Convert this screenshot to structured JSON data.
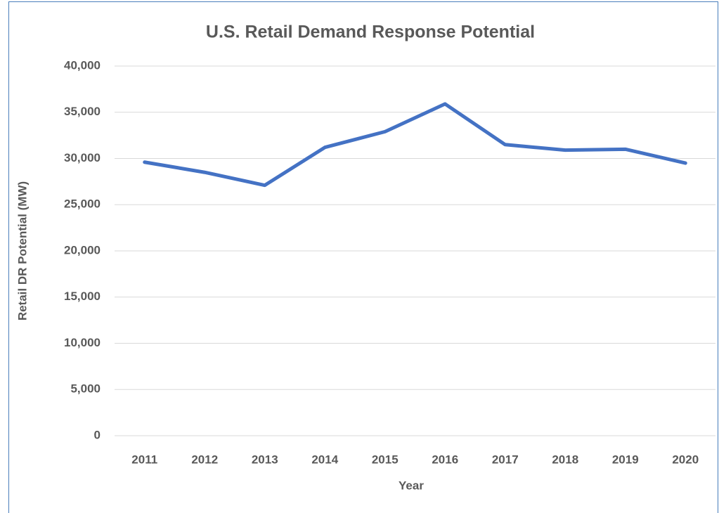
{
  "chart_data": {
    "type": "line",
    "title": "U.S. Retail Demand Response Potential",
    "x_label": "Year",
    "y_label": "Retail DR Potential (MW)",
    "categories": [
      "2011",
      "2012",
      "2013",
      "2014",
      "2015",
      "2016",
      "2017",
      "2018",
      "2019",
      "2020"
    ],
    "values": [
      29600,
      28500,
      27100,
      31200,
      32900,
      35900,
      31500,
      30900,
      31000,
      29500
    ],
    "color": "#4472c4",
    "ylim": [
      0,
      40000
    ],
    "yticks": [
      0,
      {
        "value": 5000,
        "label": "5,000"
      },
      {
        "value": 10000,
        "label": "10,000"
      },
      {
        "value": 15000,
        "label": "15,000"
      },
      {
        "value": 20000,
        "label": "20,000"
      },
      {
        "value": 25000,
        "label": "25,000"
      },
      {
        "value": 30000,
        "label": "30,000"
      },
      {
        "value": 35000,
        "label": "35,000"
      },
      {
        "value": 40000,
        "label": "40,000"
      }
    ],
    "grid": true
  }
}
